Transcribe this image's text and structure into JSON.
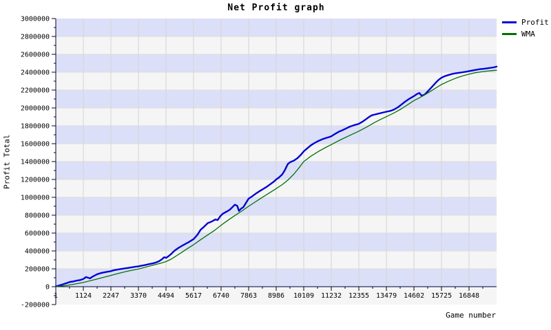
{
  "chart_data": {
    "type": "line",
    "title": "Net Profit graph",
    "xlabel": "Game number",
    "ylabel": "Profit Total",
    "xlim": [
      1,
      17970
    ],
    "ylim": [
      -200000,
      3000000
    ],
    "grid": true,
    "legend_position": "top-right",
    "x_tick_values": [
      1,
      1124,
      2247,
      3370,
      4494,
      5617,
      6740,
      7863,
      8986,
      10109,
      11232,
      12355,
      13479,
      14602,
      15725,
      16848
    ],
    "x_tick_labels": [
      "1",
      "1124",
      "2247",
      "3370",
      "4494",
      "5617",
      "6740",
      "7863",
      "8986",
      "10109",
      "11232",
      "12355",
      "13479",
      "14602",
      "15725",
      "16848"
    ],
    "y_tick_values": [
      -200000,
      0,
      200000,
      400000,
      600000,
      800000,
      1000000,
      1200000,
      1400000,
      1600000,
      1800000,
      2000000,
      2200000,
      2400000,
      2600000,
      2800000,
      3000000
    ],
    "y_tick_labels": [
      "-200000",
      "0",
      "200000",
      "400000",
      "600000",
      "800000",
      "1000000",
      "1200000",
      "1400000",
      "1600000",
      "1800000",
      "2000000",
      "2200000",
      "2400000",
      "2600000",
      "2800000",
      "3000000"
    ],
    "y_minor_step": 100000,
    "colors": {
      "band_even": "#dbe0f8",
      "band_odd": "#f5f5f5",
      "h_gridline": "#dcdcdc",
      "v_gridline": "#d4d4d4",
      "axis": "#000033",
      "text": "#000000"
    },
    "series": [
      {
        "name": "Profit",
        "color": "#0000dd",
        "width": 2.4,
        "points": [
          [
            1,
            2000
          ],
          [
            150,
            14000
          ],
          [
            300,
            27000
          ],
          [
            450,
            41000
          ],
          [
            560,
            52000
          ],
          [
            700,
            58000
          ],
          [
            850,
            68000
          ],
          [
            1000,
            75000
          ],
          [
            1124,
            86000
          ],
          [
            1230,
            108000
          ],
          [
            1320,
            100000
          ],
          [
            1400,
            93000
          ],
          [
            1500,
            112000
          ],
          [
            1600,
            127000
          ],
          [
            1690,
            140000
          ],
          [
            1800,
            149000
          ],
          [
            1950,
            159000
          ],
          [
            2100,
            167000
          ],
          [
            2247,
            174000
          ],
          [
            2350,
            183000
          ],
          [
            2500,
            191000
          ],
          [
            2650,
            198000
          ],
          [
            2810,
            205000
          ],
          [
            2950,
            210000
          ],
          [
            3100,
            217000
          ],
          [
            3250,
            224000
          ],
          [
            3370,
            228000
          ],
          [
            3500,
            235000
          ],
          [
            3650,
            243000
          ],
          [
            3800,
            252000
          ],
          [
            3930,
            259000
          ],
          [
            4050,
            268000
          ],
          [
            4200,
            284000
          ],
          [
            4320,
            305000
          ],
          [
            4420,
            330000
          ],
          [
            4500,
            322000
          ],
          [
            4600,
            342000
          ],
          [
            4700,
            365000
          ],
          [
            4800,
            392000
          ],
          [
            4900,
            415000
          ],
          [
            5000,
            434000
          ],
          [
            5100,
            450000
          ],
          [
            5200,
            466000
          ],
          [
            5300,
            481000
          ],
          [
            5400,
            495000
          ],
          [
            5617,
            532000
          ],
          [
            5700,
            558000
          ],
          [
            5800,
            590000
          ],
          [
            5900,
            635000
          ],
          [
            6000,
            660000
          ],
          [
            6100,
            685000
          ],
          [
            6200,
            712000
          ],
          [
            6300,
            722000
          ],
          [
            6400,
            735000
          ],
          [
            6500,
            752000
          ],
          [
            6600,
            745000
          ],
          [
            6711,
            790000
          ],
          [
            6800,
            815000
          ],
          [
            6900,
            830000
          ],
          [
            7000,
            845000
          ],
          [
            7100,
            862000
          ],
          [
            7200,
            890000
          ],
          [
            7300,
            918000
          ],
          [
            7400,
            905000
          ],
          [
            7466,
            848000
          ],
          [
            7550,
            872000
          ],
          [
            7650,
            890000
          ],
          [
            7750,
            935000
          ],
          [
            7863,
            985000
          ],
          [
            8000,
            1010000
          ],
          [
            8150,
            1040000
          ],
          [
            8300,
            1068000
          ],
          [
            8450,
            1092000
          ],
          [
            8600,
            1118000
          ],
          [
            8750,
            1148000
          ],
          [
            8900,
            1178000
          ],
          [
            8986,
            1200000
          ],
          [
            9100,
            1222000
          ],
          [
            9235,
            1258000
          ],
          [
            9330,
            1300000
          ],
          [
            9400,
            1340000
          ],
          [
            9460,
            1372000
          ],
          [
            9550,
            1392000
          ],
          [
            9700,
            1410000
          ],
          [
            9850,
            1438000
          ],
          [
            10000,
            1478000
          ],
          [
            10109,
            1515000
          ],
          [
            10250,
            1548000
          ],
          [
            10400,
            1582000
          ],
          [
            10550,
            1608000
          ],
          [
            10700,
            1630000
          ],
          [
            10850,
            1648000
          ],
          [
            11000,
            1662000
          ],
          [
            11120,
            1672000
          ],
          [
            11232,
            1682000
          ],
          [
            11400,
            1712000
          ],
          [
            11550,
            1735000
          ],
          [
            11700,
            1752000
          ],
          [
            11850,
            1772000
          ],
          [
            12000,
            1792000
          ],
          [
            12150,
            1806000
          ],
          [
            12355,
            1822000
          ],
          [
            12500,
            1845000
          ],
          [
            12650,
            1875000
          ],
          [
            12800,
            1905000
          ],
          [
            12886,
            1918000
          ],
          [
            13000,
            1926000
          ],
          [
            13150,
            1936000
          ],
          [
            13300,
            1946000
          ],
          [
            13479,
            1958000
          ],
          [
            13650,
            1968000
          ],
          [
            13800,
            1984000
          ],
          [
            13950,
            2008000
          ],
          [
            14100,
            2040000
          ],
          [
            14250,
            2072000
          ],
          [
            14400,
            2100000
          ],
          [
            14550,
            2125000
          ],
          [
            14602,
            2132000
          ],
          [
            14720,
            2155000
          ],
          [
            14820,
            2168000
          ],
          [
            14920,
            2135000
          ],
          [
            15050,
            2152000
          ],
          [
            15200,
            2195000
          ],
          [
            15350,
            2240000
          ],
          [
            15500,
            2285000
          ],
          [
            15620,
            2318000
          ],
          [
            15725,
            2338000
          ],
          [
            15850,
            2355000
          ],
          [
            16000,
            2368000
          ],
          [
            16150,
            2380000
          ],
          [
            16300,
            2388000
          ],
          [
            16450,
            2394000
          ],
          [
            16600,
            2400000
          ],
          [
            16750,
            2406000
          ],
          [
            16848,
            2412000
          ],
          [
            17000,
            2420000
          ],
          [
            17150,
            2428000
          ],
          [
            17300,
            2434000
          ],
          [
            17450,
            2438000
          ],
          [
            17600,
            2444000
          ],
          [
            17750,
            2450000
          ],
          [
            17860,
            2455000
          ],
          [
            17970,
            2462000
          ]
        ]
      },
      {
        "name": "WMA",
        "color": "#007000",
        "width": 1.3,
        "points": [
          [
            1,
            0
          ],
          [
            400,
            12000
          ],
          [
            800,
            31000
          ],
          [
            1124,
            47000
          ],
          [
            1500,
            73000
          ],
          [
            1900,
            101000
          ],
          [
            2247,
            126000
          ],
          [
            2600,
            152000
          ],
          [
            2950,
            175000
          ],
          [
            3370,
            198000
          ],
          [
            3700,
            221000
          ],
          [
            4000,
            243000
          ],
          [
            4300,
            265000
          ],
          [
            4494,
            281000
          ],
          [
            4700,
            308000
          ],
          [
            4900,
            342000
          ],
          [
            5100,
            378000
          ],
          [
            5300,
            414000
          ],
          [
            5617,
            470000
          ],
          [
            5900,
            525000
          ],
          [
            6200,
            580000
          ],
          [
            6500,
            635000
          ],
          [
            6740,
            688000
          ],
          [
            7000,
            740000
          ],
          [
            7300,
            795000
          ],
          [
            7600,
            850000
          ],
          [
            7863,
            900000
          ],
          [
            8100,
            942000
          ],
          [
            8400,
            995000
          ],
          [
            8700,
            1048000
          ],
          [
            8986,
            1098000
          ],
          [
            9235,
            1142000
          ],
          [
            9460,
            1192000
          ],
          [
            9700,
            1258000
          ],
          [
            9900,
            1325000
          ],
          [
            10109,
            1400000
          ],
          [
            10400,
            1460000
          ],
          [
            10700,
            1512000
          ],
          [
            11000,
            1558000
          ],
          [
            11232,
            1590000
          ],
          [
            11600,
            1642000
          ],
          [
            12000,
            1695000
          ],
          [
            12355,
            1740000
          ],
          [
            12700,
            1790000
          ],
          [
            13000,
            1838000
          ],
          [
            13250,
            1872000
          ],
          [
            13479,
            1902000
          ],
          [
            13800,
            1945000
          ],
          [
            14100,
            1992000
          ],
          [
            14400,
            2045000
          ],
          [
            14602,
            2082000
          ],
          [
            14900,
            2125000
          ],
          [
            15200,
            2172000
          ],
          [
            15500,
            2225000
          ],
          [
            15725,
            2262000
          ],
          [
            16000,
            2298000
          ],
          [
            16300,
            2332000
          ],
          [
            16600,
            2360000
          ],
          [
            16848,
            2378000
          ],
          [
            17100,
            2394000
          ],
          [
            17350,
            2404000
          ],
          [
            17600,
            2412000
          ],
          [
            17800,
            2418000
          ],
          [
            17970,
            2422000
          ]
        ]
      }
    ]
  }
}
